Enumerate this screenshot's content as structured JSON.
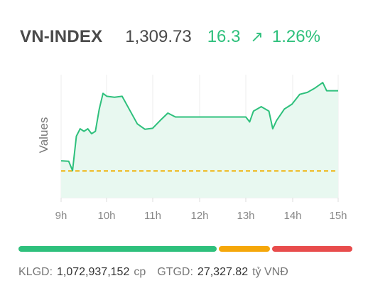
{
  "header": {
    "index_name": "VN-INDEX",
    "value": "1,309.73",
    "change": "16.3",
    "arrow_icon": "arrow-up-right-icon",
    "change_pct": "1.26%"
  },
  "colors": {
    "up": "#2ec07c",
    "down": "#e84c4c",
    "unchanged": "#f5a70a",
    "ref_line": "#f0b000",
    "area_fill": "#e8f8f0"
  },
  "chart_data": {
    "type": "area",
    "title": "",
    "xlabel": "",
    "ylabel": "Values",
    "x_ticks": [
      "9h",
      "10h",
      "11h",
      "12h",
      "13h",
      "14h",
      "15h"
    ],
    "ylim": [
      1288,
      1313
    ],
    "reference_value": 1293.43,
    "grid": "vertical",
    "series": [
      {
        "values": [
          [
            "09:00",
            1295.5
          ],
          [
            "09:10",
            1295.4
          ],
          [
            "09:15",
            1293.5
          ],
          [
            "09:20",
            1300.5
          ],
          [
            "09:25",
            1302
          ],
          [
            "09:30",
            1301.5
          ],
          [
            "09:35",
            1302
          ],
          [
            "09:40",
            1301
          ],
          [
            "09:45",
            1301.5
          ],
          [
            "09:50",
            1306
          ],
          [
            "09:55",
            1309.2
          ],
          [
            "10:00",
            1308.6
          ],
          [
            "10:10",
            1308.4
          ],
          [
            "10:20",
            1308.6
          ],
          [
            "10:30",
            1305.8
          ],
          [
            "10:40",
            1303
          ],
          [
            "10:50",
            1301.9
          ],
          [
            "11:00",
            1302.1
          ],
          [
            "11:10",
            1303.7
          ],
          [
            "11:20",
            1305.2
          ],
          [
            "11:30",
            1304.4
          ],
          [
            "11:31",
            1304.4
          ],
          [
            "13:00",
            1304.4
          ],
          [
            "13:05",
            1303.4
          ],
          [
            "13:10",
            1305.6
          ],
          [
            "13:20",
            1306.5
          ],
          [
            "13:30",
            1305.6
          ],
          [
            "13:35",
            1302
          ],
          [
            "13:40",
            1303.7
          ],
          [
            "13:50",
            1306
          ],
          [
            "14:00",
            1307
          ],
          [
            "14:10",
            1309
          ],
          [
            "14:20",
            1309.4
          ],
          [
            "14:30",
            1310.3
          ],
          [
            "14:40",
            1311.4
          ],
          [
            "14:45",
            1309.73
          ]
        ]
      }
    ]
  },
  "breadth": {
    "advancers_pct": 60,
    "unchanged_pct": 16,
    "decliners_pct": 24
  },
  "footer": {
    "volume_label": "KLGD:",
    "volume_value": "1,072,937,152",
    "volume_unit": "cp",
    "value_label": "GTGD:",
    "value_value": "27,327.82",
    "value_unit": "tỷ VNĐ"
  }
}
